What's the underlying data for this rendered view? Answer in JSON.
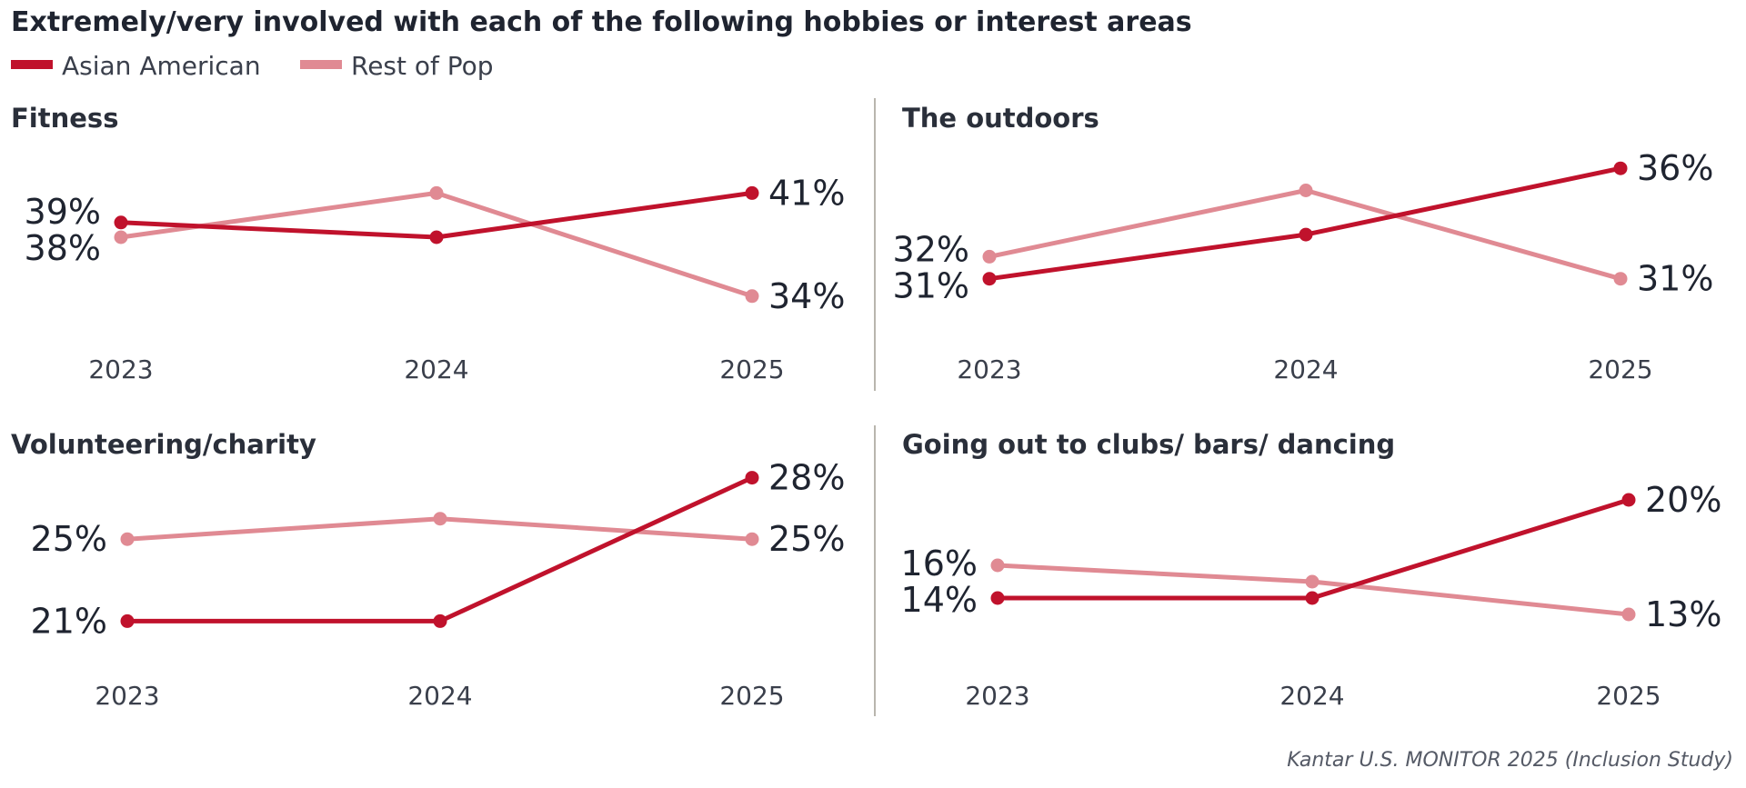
{
  "title": "Extremely/very involved with each of the following hobbies or interest areas",
  "legend": [
    {
      "name": "Asian American",
      "color": "#c0122c"
    },
    {
      "name": "Rest of Pop",
      "color": "#e08a93"
    }
  ],
  "source": "Kantar U.S. MONITOR 2025 (Inclusion Study)",
  "chart_data": [
    {
      "type": "line",
      "title": "Fitness",
      "categories": [
        "2023",
        "2024",
        "2025"
      ],
      "series": [
        {
          "name": "Asian American",
          "values": [
            39,
            38,
            41
          ],
          "labels": [
            "39%",
            null,
            "41%"
          ]
        },
        {
          "name": "Rest of Pop",
          "values": [
            38,
            41,
            34
          ],
          "labels": [
            "38%",
            null,
            "34%"
          ]
        }
      ],
      "ylim": [
        33,
        43
      ]
    },
    {
      "type": "line",
      "title": "The outdoors",
      "categories": [
        "2023",
        "2024",
        "2025"
      ],
      "series": [
        {
          "name": "Asian American",
          "values": [
            31,
            33,
            36
          ],
          "labels": [
            "31%",
            null,
            "36%"
          ]
        },
        {
          "name": "Rest of Pop",
          "values": [
            32,
            35,
            31
          ],
          "labels": [
            "32%",
            null,
            "31%"
          ]
        }
      ],
      "ylim": [
        30,
        37.2
      ]
    },
    {
      "type": "line",
      "title": "Volunteering/charity",
      "categories": [
        "2023",
        "2024",
        "2025"
      ],
      "series": [
        {
          "name": "Asian American",
          "values": [
            21,
            21,
            28
          ],
          "labels": [
            "21%",
            null,
            "28%"
          ]
        },
        {
          "name": "Rest of Pop",
          "values": [
            25,
            26,
            25
          ],
          "labels": [
            "25%",
            null,
            "25%"
          ]
        }
      ],
      "ylim": [
        20,
        29
      ]
    },
    {
      "type": "line",
      "title": "Going out to clubs/ bars/ dancing",
      "categories": [
        "2023",
        "2024",
        "2025"
      ],
      "series": [
        {
          "name": "Asian American",
          "values": [
            14,
            14,
            20
          ],
          "labels": [
            "14%",
            null,
            "20%"
          ]
        },
        {
          "name": "Rest of Pop",
          "values": [
            16,
            15,
            13
          ],
          "labels": [
            "16%",
            null,
            "13%"
          ]
        }
      ],
      "ylim": [
        12,
        21
      ]
    }
  ]
}
